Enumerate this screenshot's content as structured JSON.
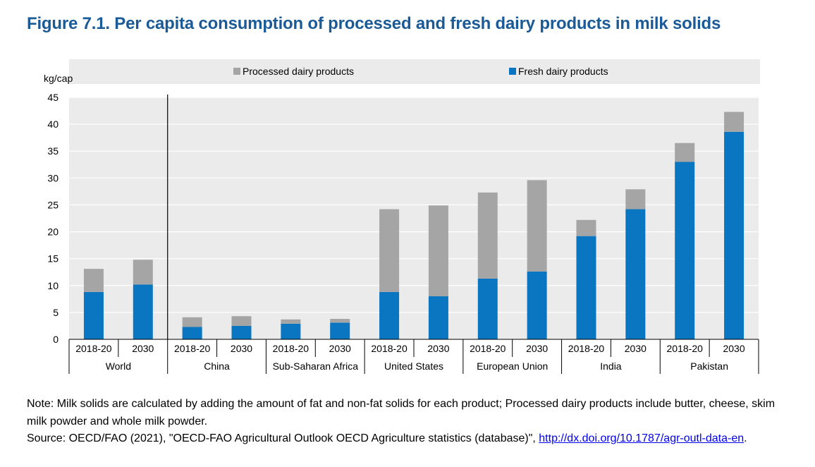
{
  "title": "Figure 7.1. Per capita consumption of processed and fresh dairy products in milk solids",
  "notes": {
    "note": "Note: Milk solids are calculated by adding the amount of fat and non-fat solids for each product; Processed dairy products include butter, cheese, skim milk powder and whole milk powder.",
    "source_prefix": "Source: OECD/FAO (2021), \"OECD-FAO Agricultural Outlook OECD Agriculture statistics (database)\", ",
    "source_link": "http://dx.doi.org/10.1787/agr-outl-data-en",
    "source_suffix": "."
  },
  "chart_data": {
    "type": "bar",
    "stacked": true,
    "ylabel": "kg/cap",
    "ylim": [
      0,
      45
    ],
    "yticks": [
      0,
      5,
      10,
      15,
      20,
      25,
      30,
      35,
      40,
      45
    ],
    "grid": true,
    "legend_position": "top",
    "groups": [
      "World",
      "China",
      "Sub-Saharan Africa",
      "United States",
      "European Union",
      "India",
      "Pakistan"
    ],
    "categories": [
      "2018-20",
      "2030",
      "2018-20",
      "2030",
      "2018-20",
      "2030",
      "2018-20",
      "2030",
      "2018-20",
      "2030",
      "2018-20",
      "2030",
      "2018-20",
      "2030"
    ],
    "series": [
      {
        "name": "Fresh dairy products",
        "color": "#0a75c0",
        "values": [
          8.8,
          10.2,
          2.3,
          2.5,
          2.9,
          3.1,
          8.8,
          8.0,
          11.3,
          12.6,
          19.2,
          24.2,
          33.0,
          38.6
        ]
      },
      {
        "name": "Processed dairy products",
        "color": "#a5a5a5",
        "values": [
          4.3,
          4.6,
          1.8,
          1.8,
          0.8,
          0.7,
          15.4,
          16.9,
          16.0,
          17.0,
          3.0,
          3.7,
          3.5,
          3.7
        ]
      }
    ],
    "legend_order": [
      "Processed dairy products",
      "Fresh dairy products"
    ],
    "plot_background": "#ebebeb",
    "grid_color": "#ffffff"
  }
}
